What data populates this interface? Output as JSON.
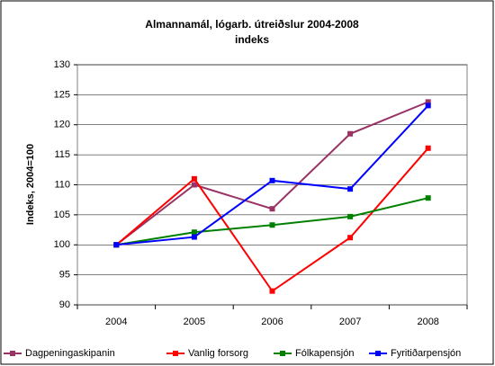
{
  "chart_data": {
    "type": "line",
    "title": "Almannamál, lógarb. útreiðslur 2004-2008",
    "subtitle": "indeks",
    "y_label": "Indeks, 2004=100",
    "categories": [
      "2004",
      "2005",
      "2006",
      "2007",
      "2008"
    ],
    "series": [
      {
        "name": "Dagpeningaskipanin",
        "color": "#993366",
        "values": [
          100,
          110,
          106,
          118.5,
          123.8
        ]
      },
      {
        "name": "Vanlig forsorg",
        "color": "#ff0000",
        "values": [
          100,
          111,
          92.3,
          101.2,
          116.1
        ]
      },
      {
        "name": "Fólkapensjón",
        "color": "#008000",
        "values": [
          100,
          102.1,
          103.3,
          104.7,
          107.8
        ]
      },
      {
        "name": "Fyritiðarpensjón",
        "color": "#0000ff",
        "values": [
          100,
          101.3,
          110.7,
          109.3,
          123.2
        ]
      }
    ],
    "ylim": [
      90,
      130
    ],
    "yticks": [
      90,
      95,
      100,
      105,
      110,
      115,
      120,
      125,
      130
    ],
    "grid": true,
    "legend": "bottom"
  }
}
